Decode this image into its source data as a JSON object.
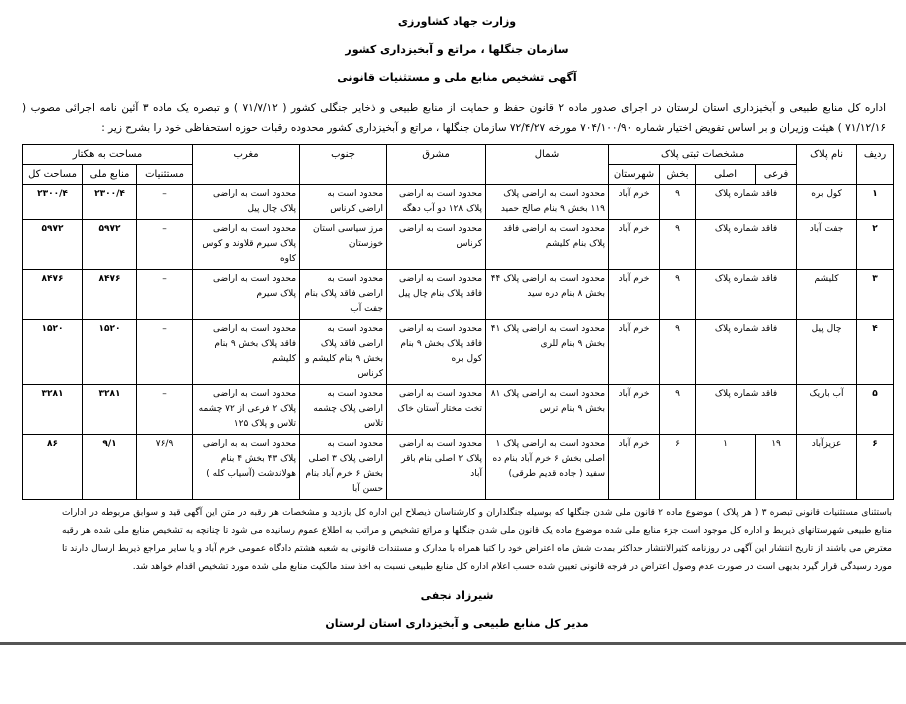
{
  "header": {
    "ministry": "وزارت جهاد کشاورزی",
    "organization": "سازمان جنگلها ، مراتع و آبخیزداری کشور",
    "notice_title": "آگهی تشخیص منابع ملی و مستثنیات قانونی"
  },
  "intro": "اداره کل منابع طبیعی و آبخیزداری استان لرستان در اجرای صدور ماده ۲ قانون حفظ و حمایت از منابع طبیعی و ذخایر جنگلی کشور ( ۷۱/۷/۱۲ ) و تبصره یک ماده ۳ آئین نامه اجرائی مصوب ( ۷۱/۱۲/۱۶ ) هیئت وزیران و بر اساس تفویض اختیار شماره ۷۰۴/۱۰۰/۹۰ مورخه ۷۲/۴/۲۷ سازمان جنگلها ، مراتع و آبخیزداری کشور محدوده رقبات حوزه استحفاظی خود را بشرح زیر :",
  "table": {
    "headers": {
      "row_no": "ردیف",
      "plaque_name": "نام پلاک",
      "registration": "مشخصات ثبتی پلاک",
      "sub": "فرعی",
      "main": "اصلی",
      "section": "بخش",
      "county": "شهرستان",
      "north": "شمال",
      "east": "مشرق",
      "south": "جنوب",
      "west": "مغرب",
      "area": "مساحت به هکتار",
      "exceptions": "مستثنیات",
      "national": "منابع ملی",
      "total": "مساحت کل"
    },
    "rows": [
      {
        "no": "۱",
        "name": "کول بره",
        "reg": "فاقد شماره پلاک",
        "section": "۹",
        "county": "خرم آباد",
        "north": "محدود است به اراضی پلاک ۱۱۹ بخش ۹ بنام صالح حمید",
        "east": "محدود است به اراضی پلاک ۱۲۸ دو آب دهگه",
        "south": "محدود است به اراضی کرناس",
        "west": "محدود است به اراضی پلاک چال پیل",
        "exceptions": "–",
        "national": "۲۳۰۰/۴",
        "total": "۲۳۰۰/۴"
      },
      {
        "no": "۲",
        "name": "جفت آباد",
        "reg": "فاقد شماره پلاک",
        "section": "۹",
        "county": "خرم آباد",
        "north": "محدود است به اراضی فاقد پلاک بنام کلیشم",
        "east": "محدود است به اراضی کرناس",
        "south": "مرز سیاسی استان خوزستان",
        "west": "محدود است به اراضی پلاک سیرم قلاوند و کوس کاوه",
        "exceptions": "–",
        "national": "۵۹۷۲",
        "total": "۵۹۷۲"
      },
      {
        "no": "۳",
        "name": "کلیشم",
        "reg": "فاقد شماره پلاک",
        "section": "۹",
        "county": "خرم آباد",
        "north": "محدود است به اراضی پلاک ۴۴ بخش ۸ بنام دره سید",
        "east": "محدود است به اراضی فاقد پلاک بنام چال پیل",
        "south": "محدود است به اراضی فاقد پلاک بنام جفت آب",
        "west": "محدود است به اراضی پلاک سیرم",
        "exceptions": "–",
        "national": "۸۴۷۶",
        "total": "۸۴۷۶"
      },
      {
        "no": "۴",
        "name": "چال پیل",
        "reg": "فاقد شماره پلاک",
        "section": "۹",
        "county": "خرم آباد",
        "north": "محدود است به اراضی پلاک ۴۱ بخش ۹ بنام للری",
        "east": "محدود است به اراضی فاقد پلاک بخش ۹ بنام کول بره",
        "south": "محدود است به اراضی فاقد پلاک بخش ۹ بنام کلیشم و کرناس",
        "west": "محدود است به اراضی فاقد پلاک بخش ۹ بنام کلیشم",
        "exceptions": "–",
        "national": "۱۵۲۰",
        "total": "۱۵۲۰"
      },
      {
        "no": "۵",
        "name": "آب باریک",
        "reg": "فاقد شماره پلاک",
        "section": "۹",
        "county": "خرم آباد",
        "north": "محدود است به اراضی پلاک ۸۱ بخش ۹ بنام ترس",
        "east": "محدود است به اراضی تخت مختار آستان خاک",
        "south": "محدود است به اراضی پلاک چشمه تلاس",
        "west": "محدود است به اراضی پلاک ۲ فرعی از ۷۲ چشمه تلاس و پلاک ۱۲۵",
        "exceptions": "–",
        "national": "۳۲۸۱",
        "total": "۳۲۸۱"
      },
      {
        "no": "۶",
        "name": "عزیزآباد",
        "sub": "۱۹",
        "main": "۱",
        "section": "۶",
        "county": "خرم آباد",
        "north": "محدود است به اراضی پلاک ۱ اصلی بخش ۶ خرم آباد بنام ده سفید ( جاده قدیم طرقی)",
        "east": "محدود است به اراضی پلاک ۲ اصلی بنام باقر آباد",
        "south": "محدود است به اراضی پلاک ۳ اصلی بخش ۶ خرم آباد بنام حسن آبا",
        "west": "محدود است به به اراضی پلاک ۴۳ بخش ۴ بنام هولاندشت (آسیاب کله )",
        "exceptions": "۷۶/۹",
        "national": "۹/۱",
        "total": "۸۶"
      }
    ]
  },
  "footer_text": "باستثنای مستثنیات قانونی تبصره ۳ ( هر پلاک ) موضوع ماده ۲ قانون ملی شدن جنگلها که بوسیله جنگلداران و کارشناسان ذیصلاح این اداره کل بازدید و مشخصات هر رقبه در متن این آگهی قید و سوابق مربوطه در ادارات منابع طبیعی شهرستانهای ذیربط و اداره کل موجود است جزء منابع ملی شده موضوع ماده یک قانون ملی شدن جنگلها و مراتع تشخیص و مراتب به اطلاع عموم رسانیده می شود تا چنانچه به تشخیص منابع ملی شده هر رقبه معترض می باشند از تاریخ انتشار این آگهی در روزنامه کثیرالانتشار حداکثر بمدت شش ماه اعتراض خود را کتبا همراه با مدارک و مستندات قانونی به شعبه هشتم دادگاه عمومی خرم آباد و یا سایر مراجع ذیربط ارسال دارند تا مورد رسیدگی قرار گیرد بدیهی است در صورت عدم وصول اعتراض در فرجه قانونی تعیین شده حسب اعلام اداره کل منابع طبیعی نسبت به اخذ سند مالکیت منابع ملی شده مورد تشخیص اقدام خواهد شد.",
  "signature": {
    "name": "شیرزاد نجفی",
    "position": "مدیر کل منابع طبیعی و آبخیزداری استان لرستان"
  }
}
